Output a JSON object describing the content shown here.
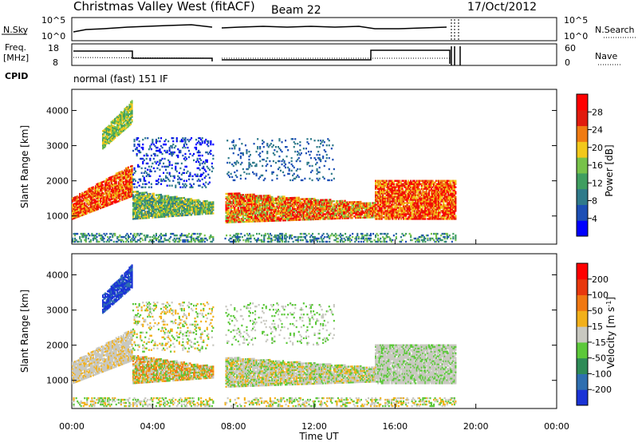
{
  "header": {
    "station": "Christmas Valley West (fitACF)",
    "beam": "Beam 22",
    "date": "17/Oct/2012"
  },
  "top_panels": {
    "nsky_label": "N.Sky",
    "nsky_ticks": [
      "10^5",
      "10^0"
    ],
    "nsearch_label": "N.Search",
    "nsearch_ticks": [
      "10^5",
      "10^0"
    ],
    "freq_label_1": "Freq.",
    "freq_label_2": "[MHz]",
    "freq_ticks": [
      "18",
      "8"
    ],
    "nave_label": "Nave",
    "nave_ticks": [
      "60",
      "0"
    ],
    "cpid_label": "CPID",
    "cpid_text": "normal (fast) 151 IF"
  },
  "chart_data": [
    {
      "type": "heatmap",
      "name": "power",
      "ylabel": "Slant Range [km]",
      "ylim": [
        200,
        4600
      ],
      "yticks": [
        1000,
        2000,
        3000,
        4000
      ],
      "colorbar_label": "Power [dB]",
      "colorbar_ticks": [
        "28",
        "24",
        "20",
        "16",
        "12",
        "8",
        "4"
      ],
      "colorbar_range": [
        0,
        32
      ],
      "colorbar_colors": [
        "#0000ff",
        "#1c4fb5",
        "#2f7a8a",
        "#3f9e60",
        "#77c24a",
        "#f2c81b",
        "#f07b12",
        "#e11b0e",
        "#ff0000"
      ]
    },
    {
      "type": "heatmap",
      "name": "velocity",
      "ylabel": "Slant Range [km]",
      "ylim": [
        200,
        4600
      ],
      "yticks": [
        1000,
        2000,
        3000,
        4000
      ],
      "colorbar_label": "Velocity [m s^-1]",
      "colorbar_ticks": [
        "200",
        "100",
        "50",
        "15",
        "-15",
        "-50",
        "-100",
        "-200"
      ],
      "colorbar_colors": [
        "#1a33d6",
        "#2f6fb0",
        "#2e8b57",
        "#5cc83a",
        "#c8c8c0",
        "#f2b01a",
        "#f07812",
        "#e8380d",
        "#ff0000"
      ]
    }
  ],
  "x_axis": {
    "label": "Time UT",
    "ticks": [
      "00:00",
      "04:00",
      "08:00",
      "12:00",
      "16:00",
      "20:00",
      "00:00"
    ]
  }
}
